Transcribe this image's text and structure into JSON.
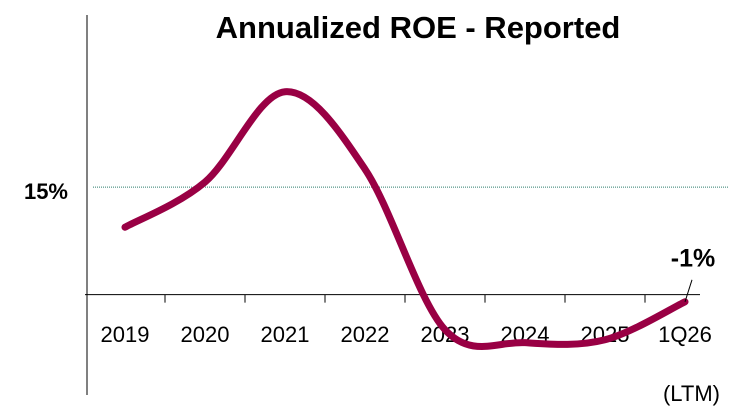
{
  "chart_data": {
    "type": "line",
    "title": "Annualized ROE - Reported",
    "categories": [
      "2019",
      "2020",
      "2021",
      "2022",
      "2023",
      "2024",
      "2025",
      "1Q26"
    ],
    "series": [
      {
        "name": "ROE",
        "color": "#990044",
        "values": [
          9.4,
          15.7,
          28.3,
          17.5,
          -4.9,
          -6.7,
          -6.3,
          -1
        ],
        "value_labels": [
          null,
          null,
          null,
          null,
          null,
          null,
          null,
          "-1%"
        ]
      }
    ],
    "ylim": [
      -14,
      39
    ],
    "yticks": [
      {
        "value": 15,
        "label": "15%"
      }
    ],
    "grid": true,
    "annotation": "(LTM)"
  }
}
